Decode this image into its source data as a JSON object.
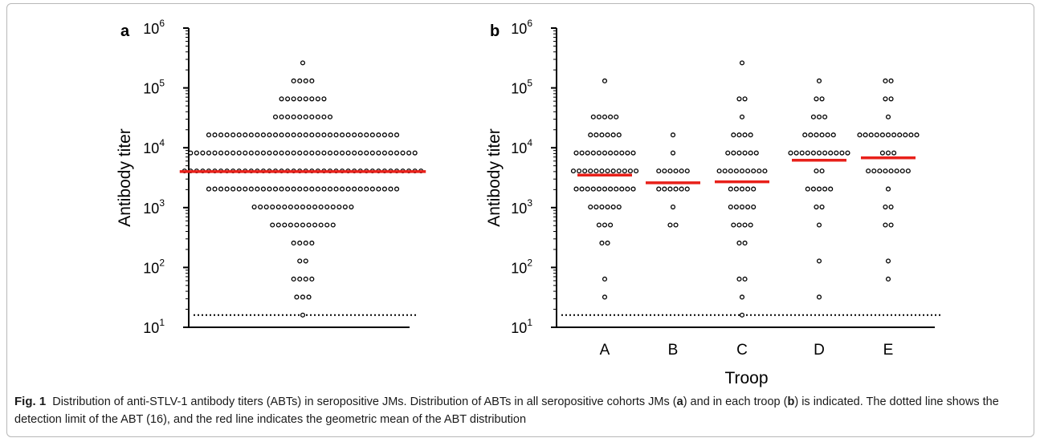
{
  "chart_data": [
    {
      "type": "scatter",
      "panel_label": "a",
      "subtype": "dot-plot",
      "ylabel": "Antibody titer",
      "xlabel": "",
      "yscale": "log10",
      "ylim": [
        10,
        1000000
      ],
      "yticks": [
        10,
        100,
        1000,
        10000,
        100000,
        1000000
      ],
      "ytick_labels": [
        {
          "base": "10",
          "exp": "1"
        },
        {
          "base": "10",
          "exp": "2"
        },
        {
          "base": "10",
          "exp": "3"
        },
        {
          "base": "10",
          "exp": "4"
        },
        {
          "base": "10",
          "exp": "5"
        },
        {
          "base": "10",
          "exp": "6"
        }
      ],
      "detection_limit": 16,
      "geometric_mean": 4000,
      "groups": [
        {
          "name": "",
          "counts": [
            {
              "titer": 262144,
              "n": 1
            },
            {
              "titer": 131072,
              "n": 4
            },
            {
              "titer": 65536,
              "n": 8
            },
            {
              "titer": 32768,
              "n": 10
            },
            {
              "titer": 16384,
              "n": 32
            },
            {
              "titer": 8192,
              "n": 38
            },
            {
              "titer": 4096,
              "n": 40
            },
            {
              "titer": 2048,
              "n": 32
            },
            {
              "titer": 1024,
              "n": 17
            },
            {
              "titer": 512,
              "n": 11
            },
            {
              "titer": 256,
              "n": 4
            },
            {
              "titer": 128,
              "n": 2
            },
            {
              "titer": 64,
              "n": 4
            },
            {
              "titer": 32,
              "n": 3
            },
            {
              "titer": 16,
              "n": 1
            }
          ]
        }
      ]
    },
    {
      "type": "scatter",
      "panel_label": "b",
      "subtype": "dot-plot",
      "ylabel": "Antibody titer",
      "xlabel": "Troop",
      "yscale": "log10",
      "ylim": [
        10,
        1000000
      ],
      "yticks": [
        10,
        100,
        1000,
        10000,
        100000,
        1000000
      ],
      "ytick_labels": [
        {
          "base": "10",
          "exp": "1"
        },
        {
          "base": "10",
          "exp": "2"
        },
        {
          "base": "10",
          "exp": "3"
        },
        {
          "base": "10",
          "exp": "4"
        },
        {
          "base": "10",
          "exp": "5"
        },
        {
          "base": "10",
          "exp": "6"
        }
      ],
      "detection_limit": 16,
      "categories": [
        "A",
        "B",
        "C",
        "D",
        "E"
      ],
      "groups": [
        {
          "name": "A",
          "geometric_mean": 3500,
          "counts": [
            {
              "titer": 131072,
              "n": 1
            },
            {
              "titer": 32768,
              "n": 5
            },
            {
              "titer": 16384,
              "n": 6
            },
            {
              "titer": 8192,
              "n": 11
            },
            {
              "titer": 4096,
              "n": 12
            },
            {
              "titer": 2048,
              "n": 11
            },
            {
              "titer": 1024,
              "n": 6
            },
            {
              "titer": 512,
              "n": 3
            },
            {
              "titer": 256,
              "n": 2
            },
            {
              "titer": 64,
              "n": 1
            },
            {
              "titer": 32,
              "n": 1
            }
          ]
        },
        {
          "name": "B",
          "geometric_mean": 2600,
          "counts": [
            {
              "titer": 16384,
              "n": 1
            },
            {
              "titer": 8192,
              "n": 1
            },
            {
              "titer": 4096,
              "n": 6
            },
            {
              "titer": 2048,
              "n": 6
            },
            {
              "titer": 1024,
              "n": 1
            },
            {
              "titer": 512,
              "n": 2
            }
          ]
        },
        {
          "name": "C",
          "geometric_mean": 2700,
          "counts": [
            {
              "titer": 262144,
              "n": 1
            },
            {
              "titer": 65536,
              "n": 2
            },
            {
              "titer": 32768,
              "n": 1
            },
            {
              "titer": 16384,
              "n": 4
            },
            {
              "titer": 8192,
              "n": 6
            },
            {
              "titer": 4096,
              "n": 9
            },
            {
              "titer": 2048,
              "n": 5
            },
            {
              "titer": 1024,
              "n": 5
            },
            {
              "titer": 512,
              "n": 4
            },
            {
              "titer": 256,
              "n": 2
            },
            {
              "titer": 64,
              "n": 2
            },
            {
              "titer": 32,
              "n": 1
            },
            {
              "titer": 16,
              "n": 1
            }
          ]
        },
        {
          "name": "D",
          "geometric_mean": 6200,
          "counts": [
            {
              "titer": 131072,
              "n": 1
            },
            {
              "titer": 65536,
              "n": 2
            },
            {
              "titer": 32768,
              "n": 3
            },
            {
              "titer": 16384,
              "n": 6
            },
            {
              "titer": 8192,
              "n": 11
            },
            {
              "titer": 4096,
              "n": 2
            },
            {
              "titer": 2048,
              "n": 5
            },
            {
              "titer": 1024,
              "n": 2
            },
            {
              "titer": 512,
              "n": 1
            },
            {
              "titer": 128,
              "n": 1
            },
            {
              "titer": 32,
              "n": 1
            }
          ]
        },
        {
          "name": "E",
          "geometric_mean": 6800,
          "counts": [
            {
              "titer": 131072,
              "n": 2
            },
            {
              "titer": 65536,
              "n": 2
            },
            {
              "titer": 32768,
              "n": 1
            },
            {
              "titer": 16384,
              "n": 11
            },
            {
              "titer": 8192,
              "n": 3
            },
            {
              "titer": 4096,
              "n": 8
            },
            {
              "titer": 2048,
              "n": 1
            },
            {
              "titer": 1024,
              "n": 2
            },
            {
              "titer": 512,
              "n": 2
            },
            {
              "titer": 128,
              "n": 1
            },
            {
              "titer": 64,
              "n": 1
            }
          ]
        }
      ]
    }
  ],
  "caption": {
    "fig_label": "Fig. 1",
    "title": "Distribution of anti-STLV-1 antibody titers (ABTs) in seropositive JMs. Distribution of ABTs in all seropositive cohorts JMs (",
    "a_label": "a",
    "mid": ") and in each troop (",
    "b_label": "b",
    "rest": ") is indicated. The dotted line shows the detection limit of the ABT (16), and the red line indicates the geometric mean of the ABT distribution"
  },
  "colors": {
    "mean_line": "#e8201a",
    "marker": "#000000",
    "axis": "#000000"
  }
}
